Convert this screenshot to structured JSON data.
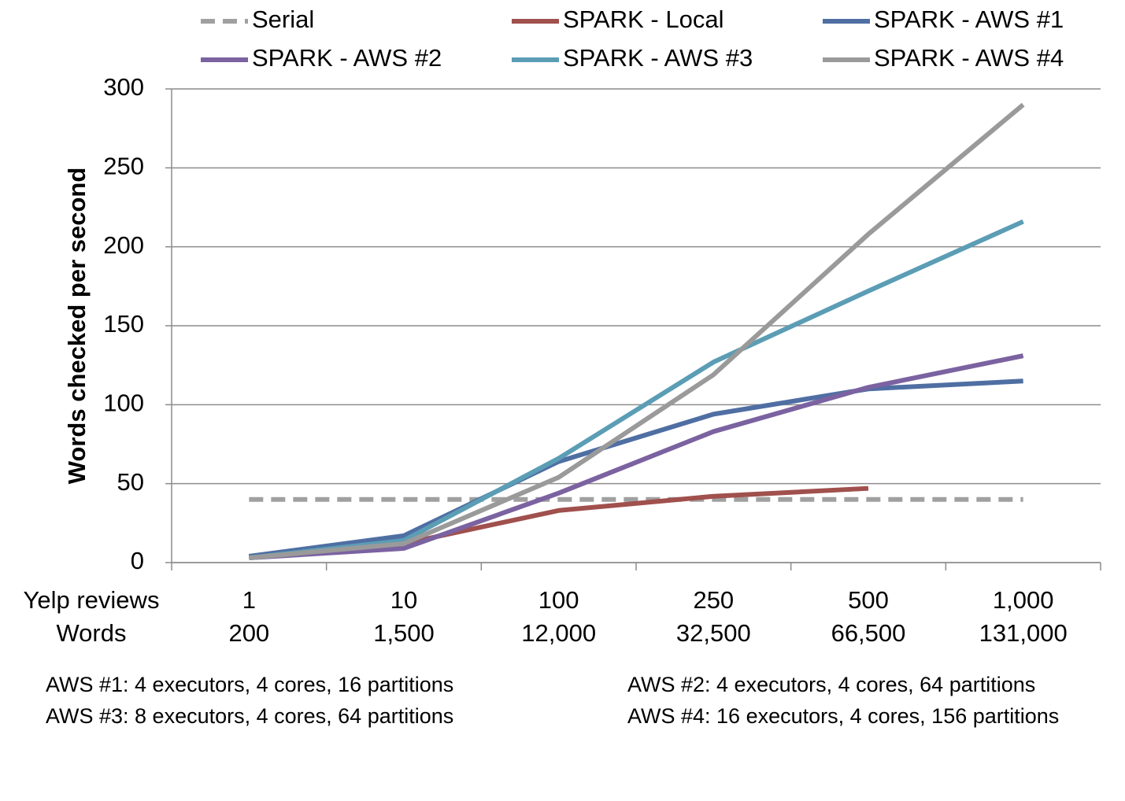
{
  "chart_data": {
    "type": "line",
    "categories": [
      "1",
      "10",
      "100",
      "250",
      "500",
      "1,000"
    ],
    "category_words": [
      "200",
      "1,500",
      "12,000",
      "32,500",
      "66,500",
      "131,000"
    ],
    "category_row_labels": [
      "Yelp reviews",
      "Words"
    ],
    "ylabel": "Words checked per second",
    "ylim": [
      0,
      300
    ],
    "yticks": [
      0,
      50,
      100,
      150,
      200,
      250,
      300
    ],
    "grid": true,
    "legend": "top",
    "series": [
      {
        "name": "Serial",
        "color": "#a0a0a0",
        "dashed": true,
        "values": [
          40,
          40,
          40,
          40,
          40,
          40
        ]
      },
      {
        "name": "SPARK - Local",
        "color": "#a0504d",
        "values": [
          3,
          12,
          33,
          42,
          47,
          null
        ]
      },
      {
        "name": "SPARK - AWS #1",
        "color": "#4f6fa3",
        "values": [
          4,
          17,
          64,
          94,
          110,
          115
        ]
      },
      {
        "name": "SPARK - AWS #2",
        "color": "#7b62a0",
        "values": [
          3,
          9,
          44,
          83,
          111,
          131
        ]
      },
      {
        "name": "SPARK - AWS #3",
        "color": "#5b9db5",
        "values": [
          3,
          14,
          66,
          127,
          172,
          216
        ]
      },
      {
        "name": "SPARK - AWS #4",
        "color": "#9a9a9a",
        "values": [
          3,
          12,
          54,
          119,
          208,
          290
        ]
      }
    ],
    "notes": [
      "AWS #1: 4 executors, 4 cores, 16 partitions",
      "AWS #2: 4 executors, 4 cores, 64 partitions",
      "AWS #3: 8 executors, 4 cores, 64 partitions",
      "AWS #4: 16 executors, 4 cores, 156 partitions"
    ]
  }
}
